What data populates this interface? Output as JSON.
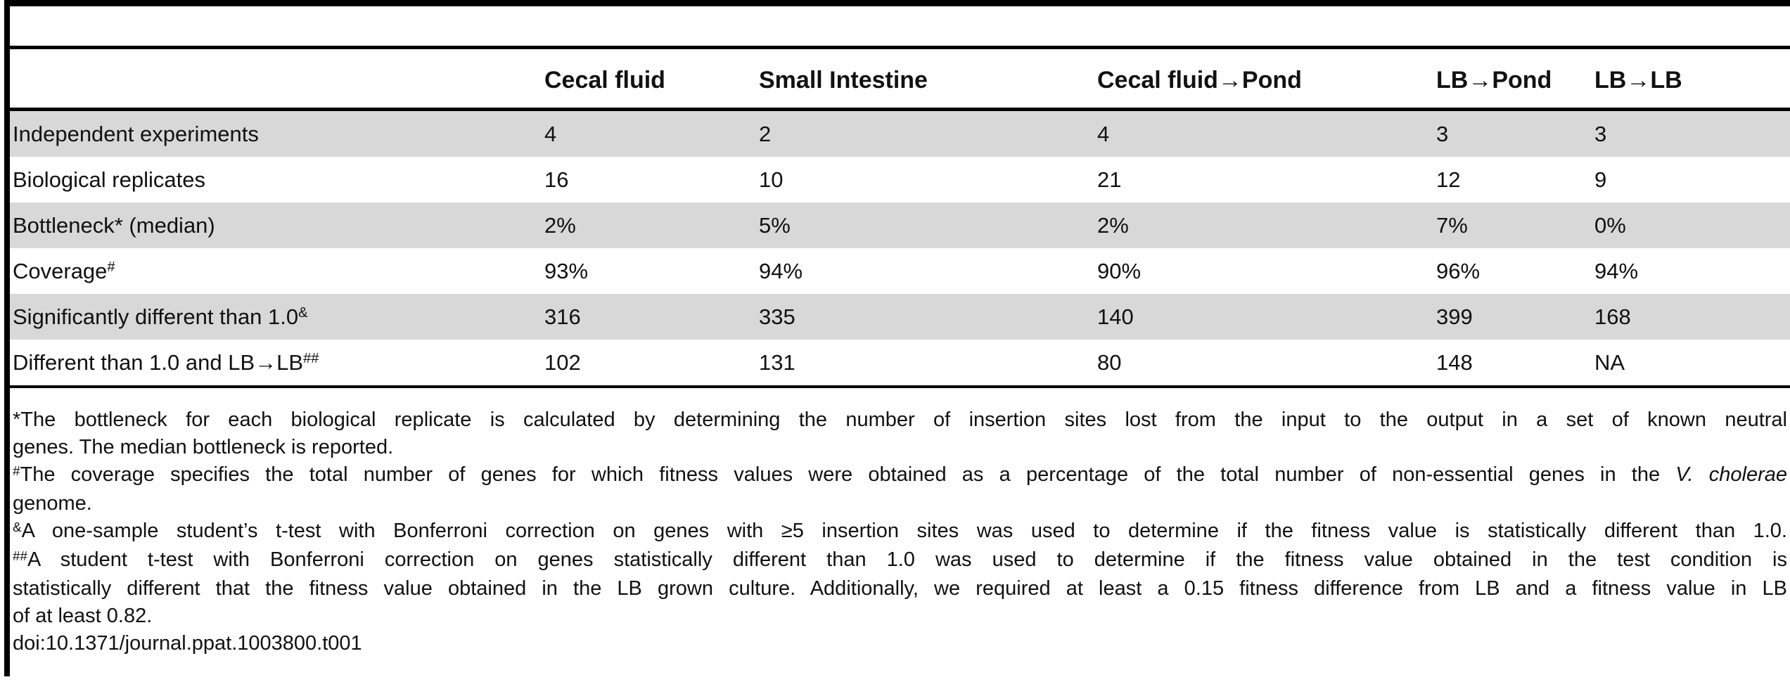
{
  "colors": {
    "row_shade": "#d8d8d8",
    "rule": "#000000",
    "text": "#111111"
  },
  "table": {
    "columns": [
      "",
      "Cecal fluid",
      "Small Intestine",
      "Cecal fluid→Pond",
      "LB→Pond",
      "LB→LB"
    ],
    "rows": [
      {
        "label": "Independent experiments",
        "sup": "",
        "values": [
          "4",
          "2",
          "4",
          "3",
          "3"
        ],
        "shaded": true
      },
      {
        "label": "Biological replicates",
        "sup": "",
        "values": [
          "16",
          "10",
          "21",
          "12",
          "9"
        ],
        "shaded": false
      },
      {
        "label": "Bottleneck* (median)",
        "sup": "",
        "values": [
          "2%",
          "5%",
          "2%",
          "7%",
          "0%"
        ],
        "shaded": true
      },
      {
        "label": "Coverage",
        "sup": "#",
        "values": [
          "93%",
          "94%",
          "90%",
          "96%",
          "94%"
        ],
        "shaded": false
      },
      {
        "label": "Significantly different than 1.0",
        "sup": "&",
        "values": [
          "316",
          "335",
          "140",
          "399",
          "168"
        ],
        "shaded": true
      },
      {
        "label": "Different than 1.0 and LB→LB",
        "sup": "##",
        "values": [
          "102",
          "131",
          "80",
          "148",
          "NA"
        ],
        "shaded": false
      }
    ]
  },
  "footnotes": [
    {
      "marker": "*",
      "marker_superscript": false,
      "lines": [
        {
          "justify": true,
          "runs": [
            {
              "t": "The bottleneck for each biological replicate is calculated by determining the number of insertion sites lost from the input to the output in a set of known neutral"
            }
          ]
        },
        {
          "justify": false,
          "runs": [
            {
              "t": "genes. The median bottleneck is reported."
            }
          ]
        }
      ]
    },
    {
      "marker": "#",
      "marker_superscript": true,
      "lines": [
        {
          "justify": true,
          "runs": [
            {
              "t": "The coverage specifies the total number of genes for which fitness values were obtained as a percentage of the total number of non-essential genes in the "
            },
            {
              "t": "V. cholerae",
              "i": true
            }
          ]
        },
        {
          "justify": false,
          "runs": [
            {
              "t": "genome."
            }
          ]
        }
      ]
    },
    {
      "marker": "&",
      "marker_superscript": true,
      "lines": [
        {
          "justify": true,
          "runs": [
            {
              "t": "A one-sample student’s t-test with Bonferroni correction on genes with ≥5 insertion sites was used to determine if the fitness value is statistically different than 1.0."
            }
          ]
        }
      ]
    },
    {
      "marker": "##",
      "marker_superscript": true,
      "lines": [
        {
          "justify": true,
          "runs": [
            {
              "t": "A student t-test with Bonferroni correction on genes statistically different than 1.0 was used to determine if the fitness value obtained in the test condition is"
            }
          ]
        },
        {
          "justify": true,
          "runs": [
            {
              "t": "statistically different that the fitness value obtained in the LB grown culture. Additionally, we required at least a 0.15 fitness difference from LB and a fitness value in LB"
            }
          ]
        },
        {
          "justify": false,
          "runs": [
            {
              "t": "of at least 0.82."
            }
          ]
        }
      ]
    }
  ],
  "doi": "doi:10.1371/journal.ppat.1003800.t001"
}
